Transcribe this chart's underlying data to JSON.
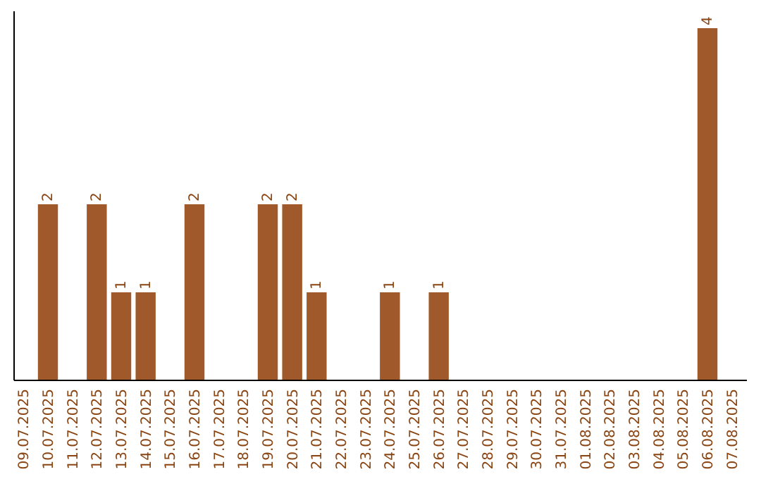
{
  "chart_data": {
    "type": "bar",
    "categories": [
      "09.07.2025",
      "10.07.2025",
      "11.07.2025",
      "12.07.2025",
      "13.07.2025",
      "14.07.2025",
      "15.07.2025",
      "16.07.2025",
      "17.07.2025",
      "18.07.2025",
      "19.07.2025",
      "20.07.2025",
      "21.07.2025",
      "22.07.2025",
      "23.07.2025",
      "24.07.2025",
      "25.07.2025",
      "26.07.2025",
      "27.07.2025",
      "28.07.2025",
      "29.07.2025",
      "30.07.2025",
      "31.07.2025",
      "01.08.2025",
      "02.08.2025",
      "03.08.2025",
      "04.08.2025",
      "05.08.2025",
      "06.08.2025",
      "07.08.2025"
    ],
    "values": [
      0,
      2,
      0,
      2,
      1,
      1,
      0,
      2,
      0,
      0,
      2,
      2,
      1,
      0,
      0,
      1,
      0,
      1,
      0,
      0,
      0,
      0,
      0,
      0,
      0,
      0,
      0,
      0,
      4,
      0
    ],
    "value_labels": [
      null,
      "2",
      null,
      "2",
      "1",
      "1",
      null,
      "2",
      null,
      null,
      "2",
      "2",
      "1",
      null,
      null,
      "1",
      null,
      "1",
      null,
      null,
      null,
      null,
      null,
      null,
      null,
      null,
      null,
      null,
      "4",
      null
    ],
    "color": "#a0592b",
    "tick_labels": "x"
  }
}
